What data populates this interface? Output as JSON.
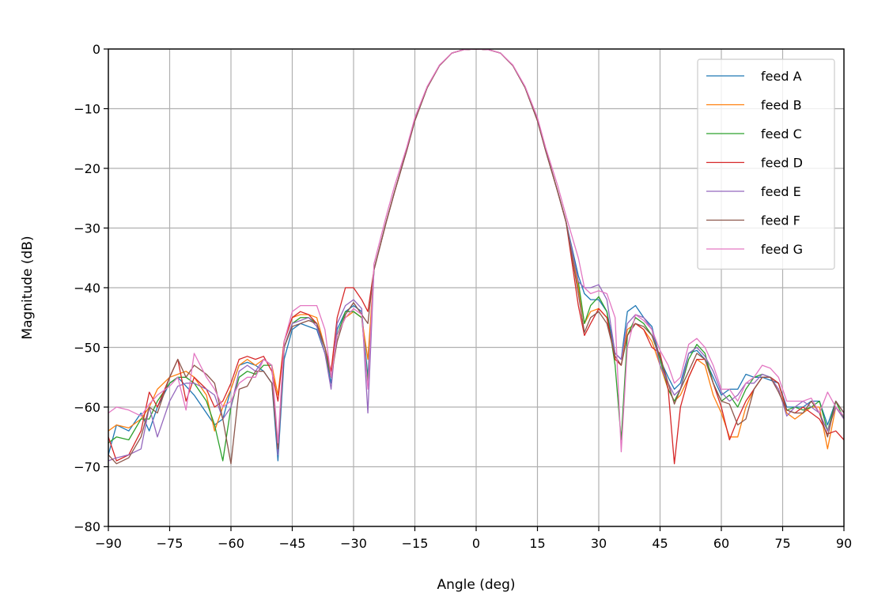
{
  "chart_data": {
    "type": "line",
    "title": "",
    "xlabel": "Angle (deg)",
    "ylabel": "Magnitude (dB)",
    "xlim": [
      -90,
      90
    ],
    "ylim": [
      -80,
      0
    ],
    "xticks": [
      -90,
      -75,
      -60,
      -45,
      -30,
      -15,
      0,
      15,
      30,
      45,
      60,
      75,
      90
    ],
    "yticks": [
      0,
      -10,
      -20,
      -30,
      -40,
      -50,
      -60,
      -70,
      -80
    ],
    "xtick_labels": [
      "−90",
      "−75",
      "−60",
      "−45",
      "−30",
      "−15",
      "0",
      "15",
      "30",
      "45",
      "60",
      "75",
      "90"
    ],
    "ytick_labels": [
      "0",
      "−10",
      "−20",
      "−30",
      "−40",
      "−50",
      "−60",
      "−70",
      "−80"
    ],
    "grid": true,
    "legend_position": "top-right",
    "x": [
      -90,
      -88,
      -85,
      -82,
      -80,
      -78,
      -75,
      -73,
      -71,
      -69,
      -66,
      -64,
      -62,
      -60,
      -58,
      -56,
      -54,
      -52,
      -50,
      -48.5,
      -47,
      -45,
      -43,
      -41,
      -39,
      -37,
      -35.5,
      -34,
      -32,
      -30,
      -28,
      -26.5,
      -25,
      -22,
      -20,
      -17,
      -15,
      -12,
      -9,
      -6,
      -3,
      0,
      3,
      6,
      9,
      12,
      15,
      17,
      20,
      22,
      25,
      26.5,
      28,
      30,
      32,
      34,
      35.5,
      37,
      39,
      41,
      43,
      45,
      47,
      48.5,
      50,
      52,
      54,
      56,
      58,
      60,
      62,
      64,
      66,
      68,
      70,
      72,
      74,
      76,
      78,
      80,
      82,
      84,
      86,
      88,
      90
    ],
    "series": [
      {
        "name": "feed A",
        "color": "#1f77b4",
        "values": [
          -68,
          -63,
          -64,
          -61,
          -64,
          -60,
          -56,
          -55,
          -56.5,
          -58,
          -61,
          -63,
          -62,
          -57,
          -53,
          -52.5,
          -53,
          -54,
          -56,
          -69,
          -52,
          -47,
          -46,
          -46.5,
          -47,
          -51,
          -56,
          -47,
          -44,
          -43,
          -44,
          -55,
          -37,
          -29,
          -24,
          -17,
          -12,
          -6.5,
          -2.8,
          -0.7,
          -0.1,
          0,
          -0.1,
          -0.7,
          -2.8,
          -6.5,
          -12,
          -17,
          -24,
          -29,
          -38,
          -41,
          -42,
          -42,
          -44,
          -51,
          -52,
          -44,
          -43,
          -45,
          -46.5,
          -52,
          -55,
          -57,
          -56,
          -51,
          -50.5,
          -52,
          -55,
          -58,
          -57,
          -57,
          -54.5,
          -55,
          -55,
          -55.5,
          -56,
          -60,
          -60,
          -60,
          -59,
          -59,
          -63,
          -59,
          -61
        ]
      },
      {
        "name": "feed B",
        "color": "#ff7f0e",
        "values": [
          -64,
          -63,
          -63.5,
          -62,
          -60,
          -57,
          -55,
          -54.5,
          -54,
          -55,
          -58,
          -64,
          -60,
          -57,
          -53,
          -52,
          -53,
          -52,
          -53,
          -58,
          -49,
          -45,
          -44.5,
          -44.5,
          -45,
          -50,
          -54,
          -48,
          -45,
          -44,
          -45,
          -52,
          -37,
          -29,
          -24,
          -17,
          -12,
          -6.5,
          -2.8,
          -0.7,
          -0.1,
          0,
          -0.1,
          -0.7,
          -2.8,
          -6.5,
          -12,
          -17,
          -24,
          -29,
          -40,
          -46,
          -44,
          -43.5,
          -45,
          -52,
          -53,
          -47,
          -46,
          -47,
          -49,
          -53,
          -57,
          -59,
          -58,
          -55,
          -52,
          -53,
          -58,
          -61,
          -65,
          -65,
          -60,
          -57,
          -55,
          -55,
          -57,
          -61,
          -62,
          -61,
          -60,
          -60,
          -67,
          -60,
          -62
        ]
      },
      {
        "name": "feed C",
        "color": "#2ca02c",
        "values": [
          -66,
          -65,
          -65.5,
          -62,
          -62,
          -59,
          -56,
          -55,
          -55,
          -56,
          -59,
          -63,
          -69,
          -60,
          -55,
          -54,
          -54.5,
          -53,
          -53,
          -67,
          -50,
          -46,
          -45,
          -45,
          -46,
          -51,
          -55,
          -48,
          -44,
          -44,
          -45,
          -56,
          -37,
          -29,
          -24,
          -17,
          -12,
          -6.5,
          -2.8,
          -0.7,
          -0.1,
          0,
          -0.1,
          -0.7,
          -2.8,
          -6.5,
          -12,
          -17,
          -24,
          -29,
          -39,
          -46,
          -43,
          -41.5,
          -44,
          -53,
          -65.5,
          -48,
          -45,
          -46,
          -48,
          -52,
          -57,
          -59,
          -57,
          -52,
          -49.5,
          -51,
          -56,
          -59,
          -58,
          -60,
          -57,
          -55,
          -54.5,
          -55,
          -56,
          -60.5,
          -60,
          -60.5,
          -60,
          -59,
          -64,
          -59,
          -62
        ]
      },
      {
        "name": "feed D",
        "color": "#d62728",
        "values": [
          -65,
          -69,
          -68,
          -64,
          -57.5,
          -60,
          -55,
          -52,
          -59,
          -55,
          -57,
          -60,
          -59,
          -56,
          -52,
          -51.5,
          -52,
          -51.5,
          -54,
          -59,
          -49,
          -45,
          -44,
          -44.5,
          -46,
          -50,
          -54,
          -45,
          -40,
          -40,
          -42,
          -44,
          -37,
          -29,
          -24,
          -17,
          -12,
          -6.5,
          -2.8,
          -0.7,
          -0.1,
          0,
          -0.1,
          -0.7,
          -2.8,
          -6.5,
          -12,
          -17,
          -24,
          -29,
          -43,
          -48,
          -46,
          -43.5,
          -45,
          -52,
          -53,
          -48,
          -46,
          -47,
          -50,
          -51,
          -57,
          -69.5,
          -60,
          -55,
          -52,
          -52,
          -56,
          -60,
          -65.5,
          -62,
          -59,
          -57,
          -55,
          -55,
          -56,
          -60.5,
          -61,
          -60,
          -61,
          -62,
          -64.5,
          -64,
          -65.5
        ]
      },
      {
        "name": "feed E",
        "color": "#9467bd",
        "values": [
          -69,
          -68.5,
          -68,
          -67,
          -60,
          -65,
          -59,
          -56.5,
          -56,
          -56,
          -57,
          -58,
          -62,
          -60,
          -54,
          -53,
          -54,
          -52,
          -53,
          -68,
          -50,
          -46,
          -45.5,
          -45,
          -46.5,
          -51,
          -57,
          -46,
          -43,
          -42,
          -43.5,
          -61,
          -37,
          -29,
          -24,
          -17,
          -12,
          -6.5,
          -2.8,
          -0.7,
          -0.1,
          0,
          -0.1,
          -0.7,
          -2.8,
          -6.5,
          -12,
          -17,
          -24,
          -29,
          -39,
          -40,
          -40,
          -39.5,
          -42,
          -51,
          -52,
          -46,
          -44.5,
          -45,
          -47,
          -53,
          -56,
          -58,
          -57,
          -51,
          -50,
          -51.5,
          -54,
          -57.5,
          -59,
          -58,
          -56,
          -56,
          -54.5,
          -55,
          -57,
          -61.5,
          -60,
          -59,
          -60,
          -61,
          -64,
          -60,
          -62
        ]
      },
      {
        "name": "feed F",
        "color": "#8c564b",
        "values": [
          -68,
          -69.5,
          -68.5,
          -65,
          -60,
          -61,
          -55,
          -52,
          -55,
          -53,
          -54.5,
          -56,
          -62,
          -69.5,
          -57,
          -56.5,
          -54,
          -54,
          -56,
          -67,
          -50,
          -46.5,
          -46,
          -45.5,
          -46,
          -50,
          -55,
          -49,
          -44.5,
          -42.5,
          -44.5,
          -46,
          -37,
          -29,
          -24,
          -17,
          -12,
          -6.5,
          -2.8,
          -0.7,
          -0.1,
          0,
          -0.1,
          -0.7,
          -2.8,
          -6.5,
          -12,
          -17,
          -24,
          -29,
          -41,
          -47.5,
          -45,
          -44,
          -46,
          -51.5,
          -53,
          -48,
          -46,
          -46.5,
          -48,
          -51.5,
          -56,
          -59.5,
          -57,
          -54,
          -51,
          -52,
          -56,
          -59,
          -59.5,
          -63,
          -62,
          -57,
          -55,
          -55,
          -57.5,
          -60.5,
          -61,
          -61,
          -59,
          -61,
          -65,
          -59,
          -61
        ]
      },
      {
        "name": "feed G",
        "color": "#e377c2",
        "values": [
          -61,
          -60,
          -60.5,
          -61.5,
          -59.5,
          -58,
          -56.5,
          -55,
          -60.5,
          -51,
          -55,
          -57,
          -60,
          -59,
          -56,
          -55,
          -55,
          -52,
          -53,
          -66,
          -49,
          -44,
          -43,
          -43,
          -43,
          -47,
          -55,
          -48,
          -45,
          -43.5,
          -44.5,
          -57,
          -36,
          -28,
          -23,
          -16.5,
          -11.5,
          -6.3,
          -2.7,
          -0.7,
          -0.1,
          0,
          -0.1,
          -0.7,
          -2.7,
          -6.3,
          -11.5,
          -16.5,
          -23,
          -28,
          -35,
          -40,
          -41,
          -40.5,
          -41,
          -45,
          -67.5,
          -50,
          -44.5,
          -45.5,
          -47,
          -50.5,
          -53,
          -56,
          -55,
          -49.5,
          -48.5,
          -50,
          -53,
          -57,
          -57,
          -59,
          -56,
          -55,
          -53,
          -53.5,
          -55,
          -59,
          -59,
          -59,
          -58.5,
          -61,
          -57.5,
          -60,
          -61.5
        ]
      }
    ]
  }
}
